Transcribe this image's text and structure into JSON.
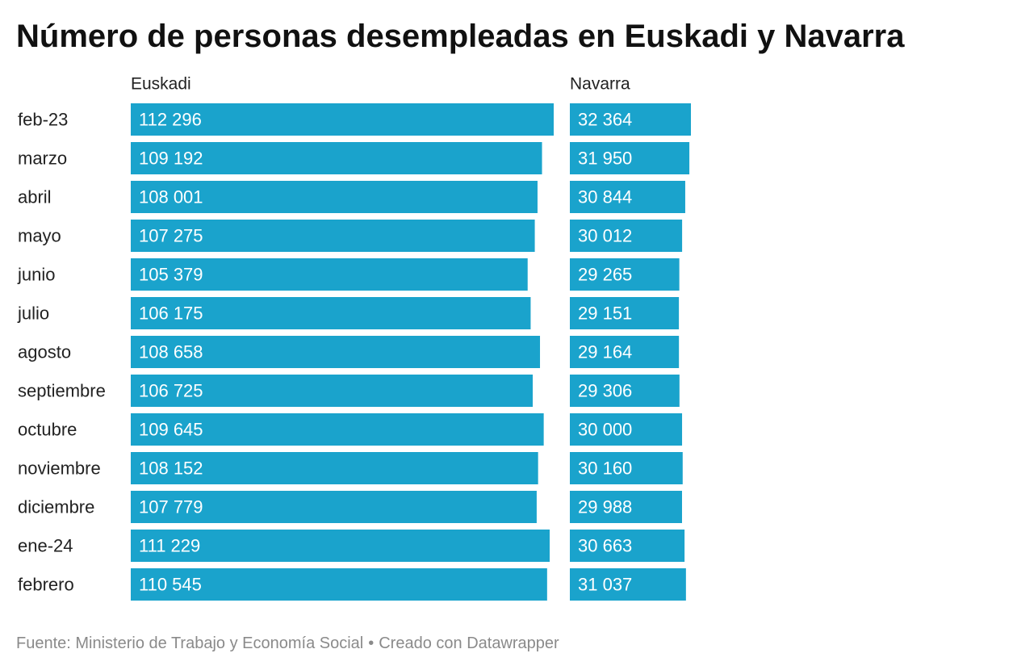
{
  "chart_data": {
    "type": "bar",
    "title": "Número de personas desempleadas en Euskadi y Navarra",
    "categories": [
      "feb-23",
      "marzo",
      "abril",
      "mayo",
      "junio",
      "julio",
      "agosto",
      "septiembre",
      "octubre",
      "noviembre",
      "diciembre",
      "ene-24",
      "febrero"
    ],
    "series": [
      {
        "name": "Euskadi",
        "values": [
          112296,
          109192,
          108001,
          107275,
          105379,
          106175,
          108658,
          106725,
          109645,
          108152,
          107779,
          111229,
          110545
        ],
        "labels": [
          "112 296",
          "109 192",
          "108 001",
          "107 275",
          "105 379",
          "106 175",
          "108 658",
          "106 725",
          "109 645",
          "108 152",
          "107 779",
          "111 229",
          "110 545"
        ]
      },
      {
        "name": "Navarra",
        "values": [
          32364,
          31950,
          30844,
          30012,
          29265,
          29151,
          29164,
          29306,
          30000,
          30160,
          29988,
          30663,
          31037
        ],
        "labels": [
          "32 364",
          "31 950",
          "30 844",
          "30 012",
          "29 265",
          "29 151",
          "29 164",
          "29 306",
          "30 000",
          "30 160",
          "29 988",
          "30 663",
          "31 037"
        ]
      }
    ],
    "orientation": "horizontal",
    "bar_color": "#1aa3cc",
    "label_color": "#ffffff"
  },
  "footer": {
    "source": "Fuente: Ministerio de Trabajo y Economía Social",
    "separator": "•",
    "credit": "Creado con Datawrapper"
  }
}
